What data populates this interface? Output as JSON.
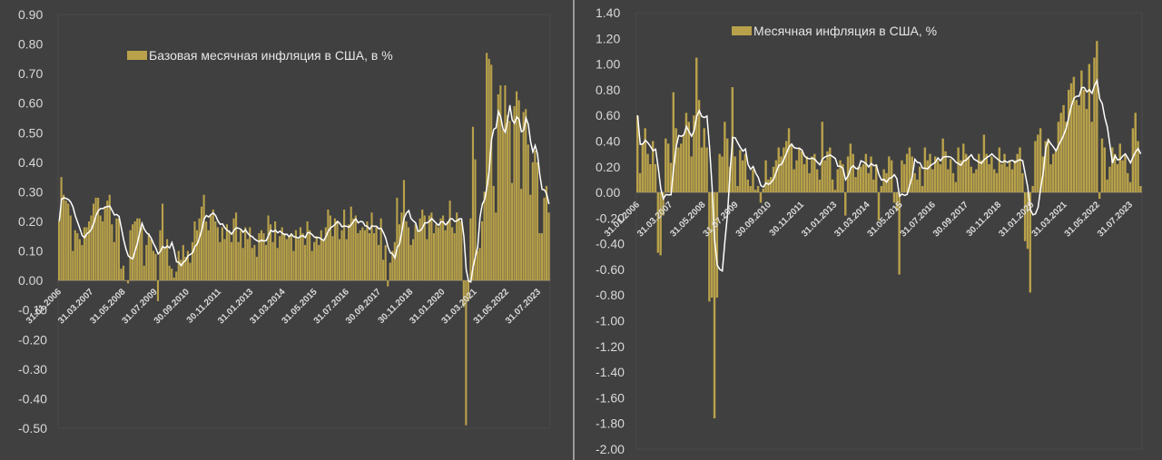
{
  "colors": {
    "bar": "#b8a14a",
    "line": "#ffffff",
    "background": "#404040",
    "axis": "#7a7a7a",
    "text": "#d9d9d9"
  },
  "chart_data": [
    {
      "type": "bar",
      "legend": [
        "Базовая месячная инфляция в США, в %"
      ],
      "legend_position": "top-center",
      "ylim": [
        -0.5,
        0.9
      ],
      "y_ticks": [
        "0.90",
        "0.80",
        "0.70",
        "0.60",
        "0.50",
        "0.40",
        "0.30",
        "0.20",
        "0.10",
        "0.00",
        "-0.10",
        "-0.20",
        "-0.30",
        "-0.40",
        "-0.50"
      ],
      "x_tick_labels": [
        "31.01.2006",
        "31.03.2007",
        "31.05.2008",
        "31.07.2009",
        "30.09.2010",
        "30.11.2011",
        "31.01.2013",
        "31.03.2014",
        "31.05.2015",
        "31.07.2016",
        "30.09.2017",
        "30.11.2018",
        "31.01.2020",
        "31.03.2021",
        "31.05.2022",
        "31.07.2023"
      ],
      "series": [
        {
          "name": "Базовая месячная инфляция в США, в %",
          "kind": "bar",
          "values": [
            0.2,
            0.35,
            0.29,
            0.27,
            0.26,
            0.22,
            0.1,
            0.17,
            0.16,
            0.14,
            0.12,
            0.18,
            0.18,
            0.2,
            0.22,
            0.26,
            0.28,
            0.28,
            0.22,
            0.2,
            0.25,
            0.27,
            0.29,
            0.19,
            0.13,
            0.21,
            0.21,
            0.04,
            0.05,
            0.0,
            -0.01,
            0.17,
            0.19,
            0.2,
            0.21,
            0.21,
            0.18,
            0.05,
            0.12,
            0.16,
            0.14,
            0.1,
            0.09,
            -0.07,
            0.17,
            0.26,
            0.11,
            0.14,
            0.05,
            0.04,
            0.01,
            0.03,
            0.1,
            0.07,
            0.12,
            0.08,
            0.1,
            0.06,
            0.13,
            0.2,
            0.17,
            0.21,
            0.25,
            0.29,
            0.2,
            0.17,
            0.22,
            0.24,
            0.2,
            0.18,
            0.13,
            0.18,
            0.14,
            0.19,
            0.17,
            0.13,
            0.21,
            0.23,
            0.13,
            0.17,
            0.11,
            0.18,
            0.14,
            0.18,
            0.11,
            0.12,
            0.08,
            0.16,
            0.17,
            0.16,
            0.12,
            0.22,
            0.19,
            0.13,
            0.2,
            0.11,
            0.15,
            0.18,
            0.16,
            0.14,
            0.15,
            0.16,
            0.1,
            0.17,
            0.14,
            0.18,
            0.16,
            0.12,
            0.2,
            0.17,
            0.1,
            0.13,
            0.15,
            0.12,
            0.17,
            0.14,
            0.18,
            0.24,
            0.22,
            0.15,
            0.21,
            0.2,
            0.14,
            0.17,
            0.24,
            0.14,
            0.19,
            0.25,
            0.21,
            0.22,
            0.16,
            0.17,
            0.18,
            0.17,
            0.2,
            0.16,
            0.23,
            0.16,
            0.18,
            0.12,
            0.21,
            0.07,
            0.12,
            -0.02,
            0.06,
            0.1,
            0.13,
            0.28,
            0.19,
            0.23,
            0.34,
            0.2,
            0.18,
            0.12,
            0.14,
            0.19,
            0.17,
            0.21,
            0.24,
            0.22,
            0.14,
            0.22,
            0.23,
            0.16,
            0.19,
            0.18,
            0.21,
            0.22,
            0.17,
            0.2,
            0.27,
            0.18,
            0.16,
            0.23,
            0.21,
            0.2,
            -0.09,
            -0.49,
            -0.07,
            0.21,
            0.52,
            0.41,
            0.1,
            0.11,
            0.2,
            0.3,
            0.77,
            0.75,
            0.73,
            0.32,
            0.23,
            0.63,
            0.66,
            0.51,
            0.66,
            0.56,
            0.54,
            0.33,
            0.59,
            0.64,
            0.61,
            0.31,
            0.57,
            0.58,
            0.46,
            0.29,
            0.4,
            0.44,
            0.4,
            0.16,
            0.16,
            0.28,
            0.32,
            0.23
          ]
        },
        {
          "name": "",
          "kind": "line",
          "note_series": "moving_average",
          "values": []
        }
      ]
    },
    {
      "type": "bar",
      "legend": [
        "Месячная инфляция в США, %"
      ],
      "legend_position": "top-center",
      "ylim": [
        -2.0,
        1.4
      ],
      "y_ticks": [
        "1.40",
        "1.20",
        "1.00",
        "0.80",
        "0.60",
        "0.40",
        "0.20",
        "0.00",
        "-0.20",
        "-0.40",
        "-0.60",
        "-0.80",
        "-1.00",
        "-1.20",
        "-1.40",
        "-1.60",
        "-1.80",
        "-2.00"
      ],
      "x_tick_labels": [
        "31.01.2006",
        "31.03.2007",
        "31.05.2008",
        "31.07.2009",
        "30.09.2010",
        "30.11.2011",
        "31.01.2013",
        "31.03.2014",
        "31.05.2015",
        "31.07.2016",
        "30.09.2017",
        "30.11.2018",
        "31.01.2020",
        "31.03.2021",
        "31.05.2022",
        "31.07.2023"
      ],
      "series": [
        {
          "name": "Месячная инфляция в США, %",
          "kind": "bar",
          "values": [
            0.6,
            0.15,
            0.38,
            0.5,
            0.3,
            0.22,
            0.4,
            0.22,
            -0.47,
            -0.49,
            -0.18,
            0.42,
            0.38,
            0.23,
            0.78,
            0.5,
            0.35,
            0.38,
            0.45,
            0.62,
            0.55,
            0.28,
            0.6,
            1.05,
            0.72,
            0.35,
            0.5,
            0.35,
            -0.85,
            -0.82,
            -1.76,
            -0.82,
            0.3,
            0.28,
            0.55,
            0.42,
            0.2,
            0.82,
            0.28,
            0.05,
            0.33,
            0.25,
            0.3,
            0.1,
            0.05,
            0.18,
            0.02,
            0.05,
            -0.08,
            0.03,
            0.25,
            0.1,
            0.12,
            0.2,
            0.25,
            0.35,
            0.28,
            0.35,
            0.4,
            0.5,
            0.38,
            0.18,
            0.25,
            0.35,
            0.32,
            0.22,
            0.28,
            0.15,
            0.28,
            0.3,
            0.18,
            0.1,
            0.55,
            0.25,
            0.32,
            0.35,
            0.1,
            0.02,
            0.18,
            0.25,
            0.22,
            -0.18,
            0.28,
            0.38,
            0.3,
            0.12,
            0.2,
            0.2,
            0.22,
            0.3,
            0.15,
            0.28,
            0.1,
            0.22,
            -0.22,
            0.05,
            0.18,
            0.15,
            0.28,
            0.25,
            -0.08,
            -0.14,
            -0.64,
            0.25,
            0.22,
            0.3,
            0.35,
            0.28,
            0.15,
            0.1,
            0.2,
            0.05,
            0.35,
            0.25,
            0.3,
            0.18,
            0.28,
            0.25,
            0.22,
            0.42,
            0.32,
            0.18,
            0.26,
            0.15,
            0.08,
            0.35,
            0.25,
            0.38,
            0.3,
            0.28,
            0.2,
            0.15,
            0.18,
            0.3,
            0.25,
            0.45,
            0.3,
            0.22,
            0.28,
            0.18,
            0.15,
            0.35,
            0.22,
            0.3,
            0.2,
            0.25,
            0.18,
            0.25,
            0.3,
            0.35,
            0.15,
            -0.38,
            -0.44,
            -0.78,
            0.05,
            0.4,
            0.45,
            0.5,
            0.28,
            0.4,
            0.42,
            0.22,
            0.3,
            0.32,
            0.55,
            0.62,
            0.68,
            0.55,
            0.8,
            0.85,
            0.9,
            0.72,
            0.68,
            0.95,
            0.8,
            0.65,
            1.0,
            0.55,
            1.05,
            1.18,
            -0.05,
            0.42,
            0.35,
            0.1,
            0.2,
            0.35,
            0.3,
            0.22,
            0.38,
            0.25,
            0.3,
            0.15,
            0.08,
            0.5,
            0.62,
            0.4,
            0.05
          ]
        },
        {
          "name": "",
          "kind": "line",
          "note_series": "moving_average",
          "values": []
        }
      ]
    }
  ]
}
